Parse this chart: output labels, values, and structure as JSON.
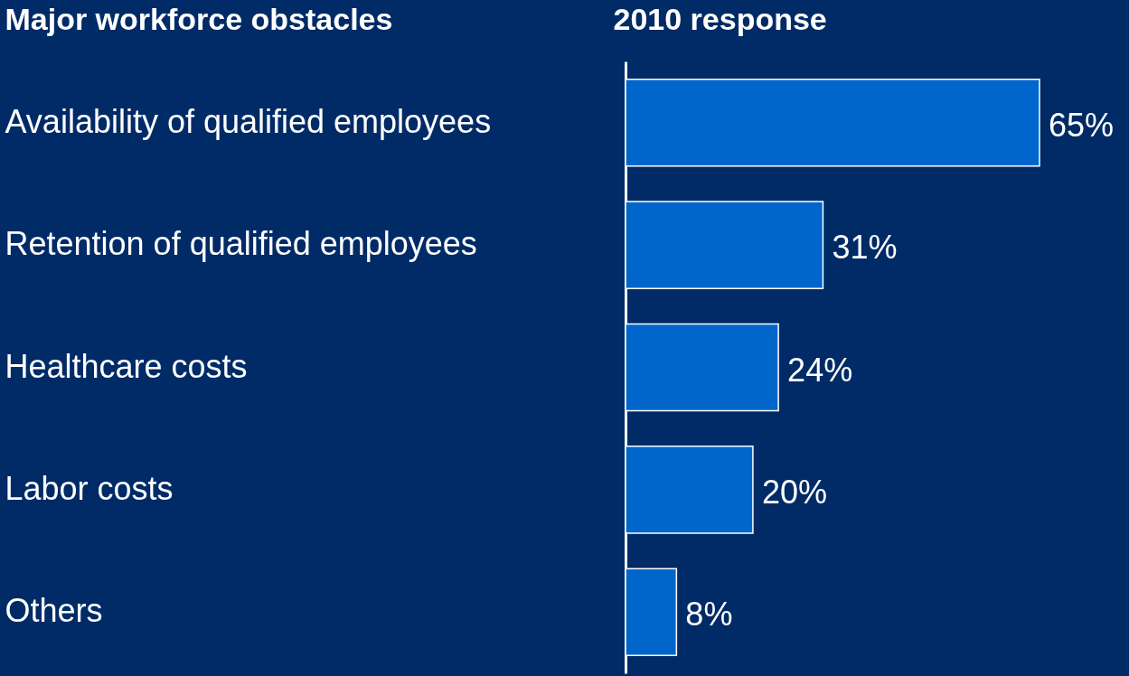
{
  "chart_data": {
    "type": "bar",
    "orientation": "horizontal",
    "xlabel": "2010 response",
    "ylabel": "Major workforce obstacles",
    "categories": [
      "Availability of qualified employees",
      "Retention of qualified employees",
      "Healthcare costs",
      "Labor costs",
      "Others"
    ],
    "values": [
      65,
      31,
      24,
      20,
      8
    ],
    "value_labels": [
      "65%",
      "31%",
      "24%",
      "20%",
      "8%"
    ],
    "color": "#0066cc",
    "tick_labels": "y"
  }
}
